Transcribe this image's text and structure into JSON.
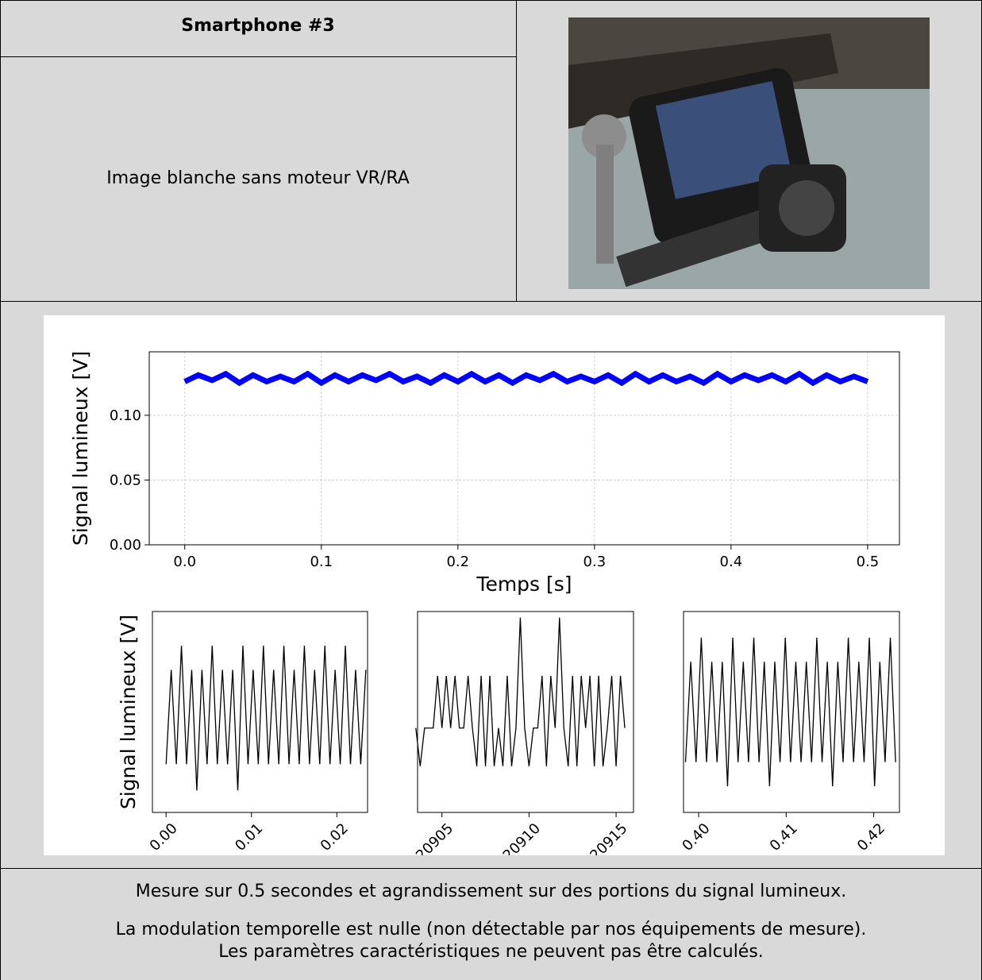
{
  "header": {
    "title": "Smartphone #3"
  },
  "description": "Image blanche sans moteur VR/RA",
  "caption": [
    "Mesure sur 0.5 secondes et agrandissement sur des portions du signal lumineux.",
    "La modulation temporelle est nulle (non détectable par nos équipements de mesure).",
    "Les paramètres caractéristiques ne peuvent pas être calculés."
  ],
  "chart_data": [
    {
      "type": "line",
      "ylabel": "Signal lumineux [V]",
      "xlabel": "Temps [s]",
      "grid": true,
      "xlim": [
        -0.026,
        0.5233
      ],
      "ylim": [
        0,
        0.149
      ],
      "xticks": [
        {
          "value": 0,
          "label": "0.0"
        },
        0.1,
        0.2,
        0.3,
        0.4,
        0.5
      ],
      "yticks": [
        {
          "value": 0,
          "label": "0.00"
        },
        0.05,
        {
          "value": 0.1,
          "label": "0.10"
        }
      ],
      "x": [
        0,
        0.01,
        0.02,
        0.03,
        0.04,
        0.05,
        0.06,
        0.07,
        0.08,
        0.09,
        0.1,
        0.11,
        0.12,
        0.13,
        0.14,
        0.15,
        0.16,
        0.17,
        0.18,
        0.19,
        0.2,
        0.21,
        0.22,
        0.23,
        0.24,
        0.25,
        0.26,
        0.27,
        0.28,
        0.29,
        0.3,
        0.31,
        0.32,
        0.33,
        0.34,
        0.35,
        0.36,
        0.37,
        0.38,
        0.39,
        0.4,
        0.41,
        0.42,
        0.43,
        0.44,
        0.45,
        0.46,
        0.47,
        0.48,
        0.49,
        0.5
      ],
      "series": [
        {
          "color": "#0000ff",
          "values": [
            0.126,
            0.131,
            0.127,
            0.132,
            0.125,
            0.131,
            0.126,
            0.13,
            0.126,
            0.132,
            0.125,
            0.131,
            0.126,
            0.131,
            0.127,
            0.132,
            0.126,
            0.13,
            0.125,
            0.131,
            0.126,
            0.132,
            0.126,
            0.131,
            0.125,
            0.131,
            0.127,
            0.132,
            0.126,
            0.13,
            0.126,
            0.131,
            0.125,
            0.132,
            0.126,
            0.131,
            0.126,
            0.13,
            0.125,
            0.132,
            0.126,
            0.131,
            0.127,
            0.131,
            0.126,
            0.132,
            0.125,
            0.131,
            0.126,
            0.13,
            0.126
          ]
        }
      ]
    },
    {
      "type": "line",
      "ylabel": "Signal lumineux [V]",
      "grid": false,
      "xtick_rotation": 45,
      "xlim": [
        -0.0016,
        0.0236
      ],
      "ylim": [
        0.1235,
        0.1335
      ],
      "xticks": [
        {
          "value": 0,
          "label": "0.00"
        },
        0.01,
        0.02
      ],
      "x": [
        0,
        0.0006,
        0.0012,
        0.0018,
        0.0024,
        0.003,
        0.0036,
        0.0042,
        0.0048,
        0.0054,
        0.006,
        0.0066,
        0.0072,
        0.0078,
        0.0084,
        0.009,
        0.0096,
        0.0102,
        0.0108,
        0.0114,
        0.012,
        0.0126,
        0.0132,
        0.0138,
        0.0144,
        0.015,
        0.0156,
        0.0162,
        0.0168,
        0.0174,
        0.018,
        0.0186,
        0.0192,
        0.0198,
        0.0204,
        0.021,
        0.0216,
        0.0222,
        0.0228,
        0.0234
      ],
      "series": [
        {
          "color": "#000000",
          "values": [
            0.1259,
            0.1306,
            0.1259,
            0.1318,
            0.1259,
            0.1306,
            0.1246,
            0.1306,
            0.1259,
            0.1318,
            0.1259,
            0.1306,
            0.1259,
            0.1306,
            0.1246,
            0.1318,
            0.1259,
            0.1306,
            0.1259,
            0.1318,
            0.1259,
            0.1306,
            0.1259,
            0.1318,
            0.1259,
            0.1306,
            0.1259,
            0.1318,
            0.1259,
            0.1306,
            0.1259,
            0.1318,
            0.1259,
            0.1306,
            0.1259,
            0.1318,
            0.1259,
            0.1306,
            0.1259,
            0.1306
          ]
        }
      ]
    },
    {
      "type": "line",
      "grid": false,
      "xtick_rotation": 45,
      "xlim": [
        20903.6,
        20916.0
      ],
      "ylim": [
        0.1235,
        0.1335
      ],
      "xticks": [
        20905,
        20910,
        20915
      ],
      "x": [
        20903.5,
        20903.75,
        20904,
        20904.25,
        20904.5,
        20904.75,
        20905,
        20905.25,
        20905.5,
        20905.75,
        20906,
        20906.25,
        20906.5,
        20906.75,
        20907,
        20907.25,
        20907.5,
        20907.75,
        20908,
        20908.25,
        20908.5,
        20908.75,
        20909,
        20909.25,
        20909.5,
        20909.75,
        20910,
        20910.25,
        20910.5,
        20910.75,
        20911,
        20911.25,
        20911.5,
        20911.75,
        20912,
        20912.25,
        20912.5,
        20912.75,
        20913,
        20913.25,
        20913.5,
        20913.75,
        20914,
        20914.25,
        20914.5,
        20914.75,
        20915,
        20915.25,
        20915.5
      ],
      "series": [
        {
          "color": "#000000",
          "values": [
            0.1277,
            0.1258,
            0.1277,
            0.1277,
            0.1277,
            0.1303,
            0.1277,
            0.1303,
            0.1277,
            0.1303,
            0.1277,
            0.1277,
            0.1303,
            0.1277,
            0.1258,
            0.1303,
            0.1258,
            0.1303,
            0.1258,
            0.1277,
            0.1258,
            0.1303,
            0.1258,
            0.1277,
            0.1332,
            0.1277,
            0.1258,
            0.1277,
            0.1277,
            0.1303,
            0.1258,
            0.1303,
            0.1277,
            0.1332,
            0.1277,
            0.1258,
            0.1303,
            0.1258,
            0.1303,
            0.1277,
            0.1303,
            0.1258,
            0.1303,
            0.1258,
            0.1277,
            0.1303,
            0.1258,
            0.1303,
            0.1277
          ]
        }
      ]
    },
    {
      "type": "line",
      "grid": false,
      "xtick_rotation": 45,
      "xlim": [
        0.39827,
        0.42294
      ],
      "ylim": [
        0.1235,
        0.1335
      ],
      "xticks": [
        {
          "value": 0.4,
          "label": "0.40"
        },
        0.41,
        0.42
      ],
      "x": [
        0.3985,
        0.3991,
        0.3997,
        0.4003,
        0.4009,
        0.4015,
        0.4021,
        0.4027,
        0.4033,
        0.4039,
        0.4045,
        0.4051,
        0.4057,
        0.4063,
        0.4069,
        0.4075,
        0.4081,
        0.4087,
        0.4093,
        0.4099,
        0.4105,
        0.4111,
        0.4117,
        0.4123,
        0.4129,
        0.4135,
        0.4141,
        0.4147,
        0.4153,
        0.4159,
        0.4165,
        0.4171,
        0.4177,
        0.4183,
        0.4189,
        0.4195,
        0.4201,
        0.4207,
        0.4213,
        0.4219,
        0.4225
      ],
      "series": [
        {
          "color": "#000000",
          "values": [
            0.126,
            0.131,
            0.126,
            0.1322,
            0.126,
            0.131,
            0.126,
            0.131,
            0.1248,
            0.1322,
            0.126,
            0.131,
            0.126,
            0.1322,
            0.126,
            0.131,
            0.1248,
            0.131,
            0.126,
            0.1322,
            0.126,
            0.131,
            0.126,
            0.131,
            0.126,
            0.1322,
            0.126,
            0.131,
            0.1248,
            0.131,
            0.126,
            0.1322,
            0.126,
            0.131,
            0.126,
            0.1322,
            0.1248,
            0.131,
            0.126,
            0.1322,
            0.126
          ]
        }
      ]
    }
  ]
}
